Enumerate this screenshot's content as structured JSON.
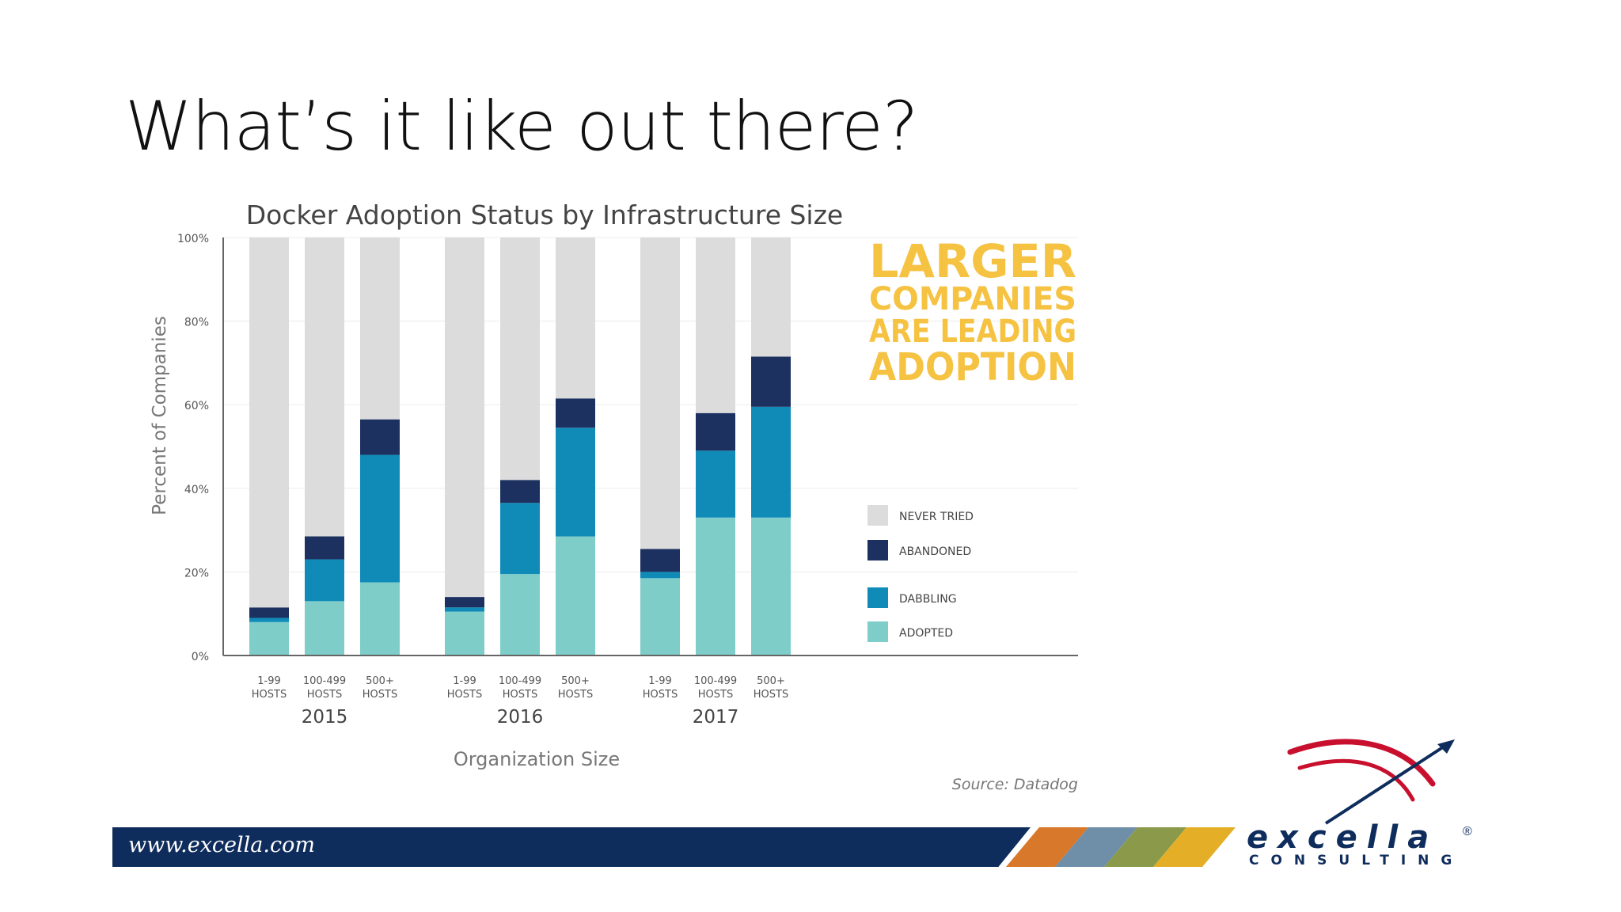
{
  "slide": {
    "title": "What’s it like out there?"
  },
  "colors": {
    "never_tried": "#dcdcdc",
    "abandoned": "#1c3160",
    "dabbling": "#108bb7",
    "adopted": "#7ecdc9",
    "callout": "#f5c242",
    "footer_navy": "#0f2d5c",
    "stripes": [
      "#d8782a",
      "#6f8ea8",
      "#8a9a4a",
      "#e5ae27"
    ],
    "logo_red": "#c8102e"
  },
  "chart_data": {
    "type": "bar",
    "stacked": true,
    "title": "Docker Adoption Status by Infrastructure Size",
    "xlabel": "Organization Size",
    "ylabel": "Percent of Companies",
    "ylim": [
      0,
      100
    ],
    "yticks": [
      "0%",
      "20%",
      "40%",
      "60%",
      "80%",
      "100%"
    ],
    "grid": true,
    "legend_position": "right",
    "groups": [
      "2015",
      "2016",
      "2017"
    ],
    "categories": [
      [
        "1-99",
        "HOSTS"
      ],
      [
        "100-499",
        "HOSTS"
      ],
      [
        "500+",
        "HOSTS"
      ],
      [
        "1-99",
        "HOSTS"
      ],
      [
        "100-499",
        "HOSTS"
      ],
      [
        "500+",
        "HOSTS"
      ],
      [
        "1-99",
        "HOSTS"
      ],
      [
        "100-499",
        "HOSTS"
      ],
      [
        "500+",
        "HOSTS"
      ]
    ],
    "series": [
      {
        "name": "ADOPTED",
        "values": [
          8,
          13,
          17.5,
          10.5,
          19.5,
          28.5,
          18.5,
          33,
          33
        ]
      },
      {
        "name": "DABBLING",
        "values": [
          1,
          10,
          30.5,
          1,
          17,
          26,
          1.5,
          16,
          26.5
        ]
      },
      {
        "name": "ABANDONED",
        "values": [
          2.5,
          5.5,
          8.5,
          2.5,
          5.5,
          7,
          5.5,
          9,
          12
        ]
      },
      {
        "name": "NEVER TRIED",
        "values": [
          88.5,
          71.5,
          43.5,
          86,
          58,
          38.5,
          74.5,
          42,
          28.5
        ]
      }
    ],
    "legend_order": [
      "NEVER TRIED",
      "ABANDONED",
      "DABBLING",
      "ADOPTED"
    ],
    "callout": [
      "LARGER",
      "COMPANIES",
      "ARE LEADING",
      "ADOPTION"
    ],
    "source": "Source: Datadog"
  },
  "footer": {
    "url": "www.excella.com",
    "logo_word": "excella",
    "logo_sub": "CONSULTING",
    "logo_reg": "®"
  }
}
